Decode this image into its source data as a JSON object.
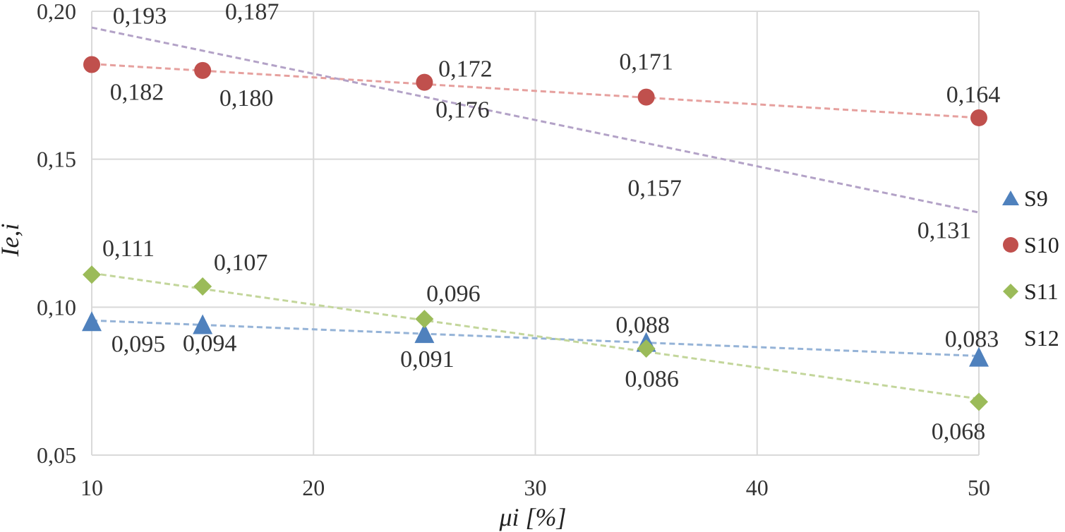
{
  "chart_data": {
    "type": "scatter",
    "title": "",
    "xlabel": "μi [%]",
    "ylabel": "Ie,i",
    "xlim": [
      10,
      50
    ],
    "ylim": [
      0.05,
      0.2
    ],
    "x_ticks": [
      10,
      20,
      30,
      40,
      50
    ],
    "x_tick_labels": [
      "10",
      "20",
      "30",
      "40",
      "50"
    ],
    "y_ticks": [
      0.05,
      0.1,
      0.15,
      0.2
    ],
    "y_tick_labels": [
      "0,05",
      "0,10",
      "0,15",
      "0,20"
    ],
    "grid": true,
    "legend_position": "right",
    "series": [
      {
        "name": "S9",
        "marker": "triangle",
        "color": "#4f81bd",
        "trend_color": "#95b3d7",
        "x": [
          10,
          15,
          25,
          35,
          50
        ],
        "y": [
          0.095,
          0.094,
          0.091,
          0.088,
          0.083
        ],
        "labels": [
          "0,095",
          "0,094",
          "0,091",
          "0,088",
          "0,083"
        ],
        "trend": [
          0.0955,
          0.0835
        ]
      },
      {
        "name": "S10",
        "marker": "circle",
        "color": "#c0504d",
        "trend_color": "#e6a09e",
        "x": [
          10,
          15,
          25,
          35,
          50
        ],
        "y": [
          0.182,
          0.18,
          0.176,
          0.171,
          0.164
        ],
        "labels": [
          "0,182",
          "0,180",
          "0,176",
          "0,171",
          "0,164"
        ],
        "trend": [
          0.1822,
          0.164
        ]
      },
      {
        "name": "S11",
        "marker": "diamond",
        "color": "#9bbb59",
        "trend_color": "#c3d69b",
        "x": [
          10,
          15,
          25,
          35,
          50
        ],
        "y": [
          0.111,
          0.107,
          0.096,
          0.086,
          0.068
        ],
        "labels": [
          "0,111",
          "0,107",
          "0,096",
          "0,086",
          "0,068"
        ],
        "trend": [
          0.1115,
          0.069
        ]
      },
      {
        "name": "S12",
        "marker": "none",
        "color": "#8064a2",
        "trend_color": "#b3a2c7",
        "x": [
          10,
          15,
          25,
          35,
          50
        ],
        "y": [
          0.193,
          0.187,
          0.172,
          0.157,
          0.131
        ],
        "labels": [
          "0,193",
          "0,187",
          "0,172",
          "0,157",
          "0,131"
        ],
        "trend": [
          0.1945,
          0.132
        ]
      }
    ]
  }
}
